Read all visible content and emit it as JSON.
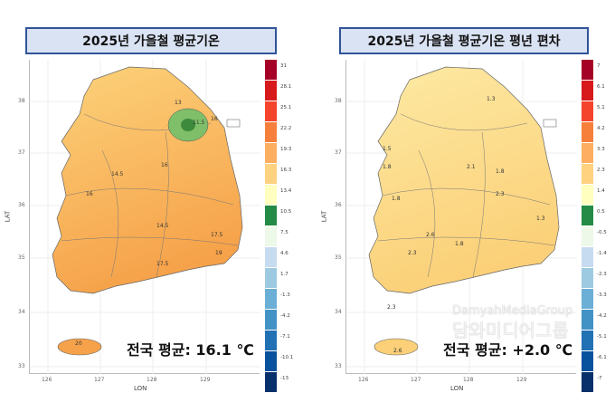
{
  "left": {
    "title": "2025년 가을철 평균기온",
    "average": "전국 평균: 16.1 ℃",
    "legend": [
      "31",
      "28.1",
      "25.1",
      "22.2",
      "19.3",
      "16.3",
      "13.4",
      "10.5",
      "7.5",
      "4.6",
      "1.7",
      "-1.3",
      "-4.2",
      "-7.1",
      "-10.1",
      "-13"
    ],
    "contour_labels": [
      "13",
      "11.5",
      "16",
      "14.5",
      "16",
      "16",
      "14.5",
      "17.5",
      "19",
      "17.5",
      "20"
    ]
  },
  "right": {
    "title": "2025년 가을철 평균기온 평년 편차",
    "average": "전국 평균: +2.0 ℃",
    "legend": [
      "7",
      "6.1",
      "5.1",
      "4.2",
      "3.3",
      "2.3",
      "1.4",
      "0.5",
      "-0.5",
      "-1.4",
      "-2.3",
      "-3.3",
      "-4.2",
      "-5.1",
      "-6.1",
      "-7"
    ],
    "contour_labels": [
      "1.3",
      "1.5",
      "1.8",
      "1.8",
      "2.1",
      "1.8",
      "2.3",
      "1.8",
      "2.6",
      "2.3",
      "1.3",
      "2.3",
      "2.6"
    ]
  },
  "axes": {
    "xlabel": "LON",
    "ylabel": "LAT",
    "xticks": [
      "126",
      "127",
      "128",
      "129"
    ],
    "yticks": [
      "38",
      "37",
      "36",
      "35",
      "34",
      "33"
    ]
  },
  "legend_colors": [
    "#a50026",
    "#d7191c",
    "#f4442b",
    "#f6803b",
    "#fdae61",
    "#fed27f",
    "#ffffbf",
    "#238b45",
    "#edf8e9",
    "#c6dbef",
    "#9ecae1",
    "#6baed6",
    "#4292c6",
    "#2171b5",
    "#08519c",
    "#08306b"
  ],
  "watermark": {
    "en": "DamyahMediaGroup",
    "ko": "담와미디어그룹"
  }
}
